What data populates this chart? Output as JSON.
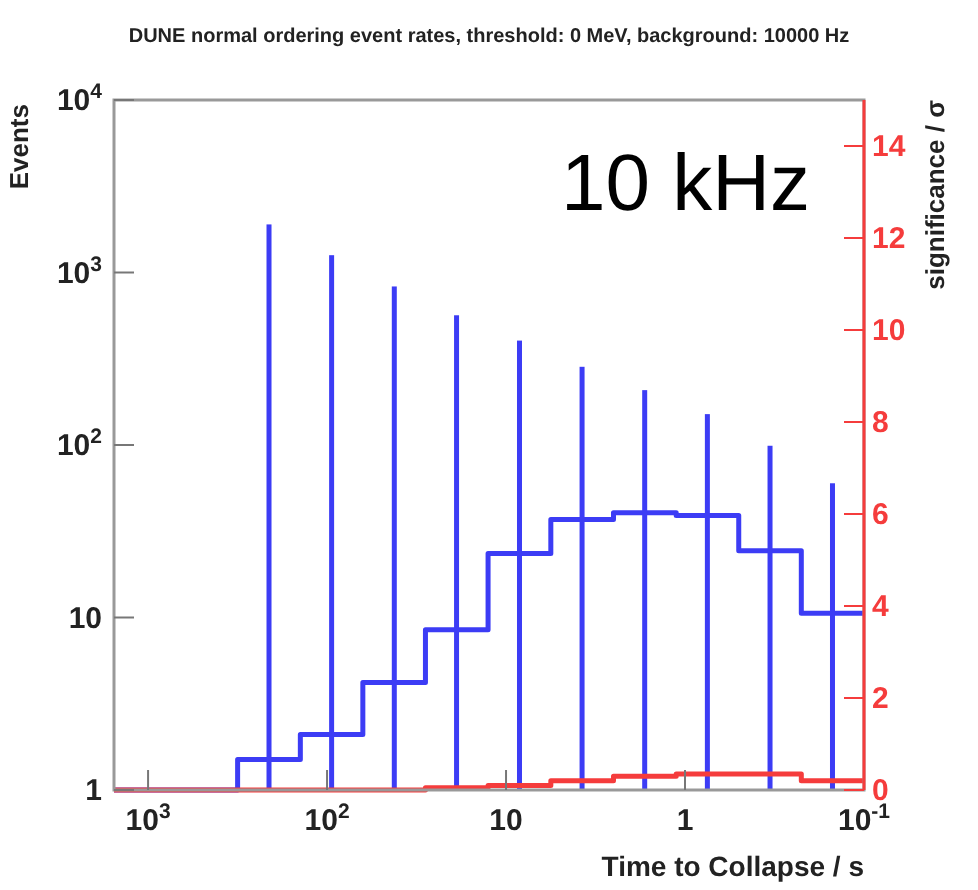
{
  "chart_data": {
    "type": "histogram",
    "title": "DUNE normal ordering event rates, threshold: 0 MeV, background: 10000 Hz",
    "xlabel": "Time to Collapse / s",
    "ylabel": "Events",
    "y2label": "significance / σ",
    "annotations": [
      "10 kHz"
    ],
    "log": "xy",
    "bins": [
      1550,
      316,
      141,
      63.1,
      28.2,
      12.6,
      5.62,
      2.51,
      1.12,
      0.501,
      0.224,
      0.1
    ],
    "series": [
      {
        "color": "#3c3cf5",
        "values": [
          1,
          1.5,
          2.1,
          4.2,
          8.5,
          23.5,
          37,
          40.5,
          39,
          24.4,
          10.6
        ]
      },
      {
        "type": "bar",
        "color": "#3c3cf5",
        "x": [
          211,
          94.3,
          42.1,
          18.9,
          8.41,
          3.76,
          1.68,
          0.75,
          0.335,
          0.15
        ],
        "values": [
          1900,
          1260,
          830,
          565,
          403,
          284,
          208,
          151,
          99,
          60
        ]
      },
      {
        "color": "#f53c3c",
        "axis": "y2",
        "values": [
          0,
          0,
          0,
          0,
          0.05,
          0.1,
          0.2,
          0.3,
          0.35,
          0.35,
          0.2
        ]
      }
    ],
    "xlim": [
      1550,
      0.1
    ],
    "xticks": [
      {
        "value": 1000,
        "label": "10$^{3}$"
      },
      {
        "value": 100,
        "label": "10$^{2}$"
      },
      10,
      1,
      {
        "value": 0.1,
        "label": "10$^{-1}$"
      }
    ],
    "ylim": [
      1,
      10000
    ],
    "yticks": [
      1,
      10,
      {
        "value": 100,
        "label": "10$^{2}$"
      },
      {
        "value": 1000,
        "label": "10$^{3}$"
      },
      {
        "value": 10000,
        "label": "10$^{4}$"
      }
    ],
    "y2lim": [
      0,
      15
    ],
    "y2ticks": [
      0,
      2,
      4,
      6,
      8,
      10,
      12,
      14
    ]
  }
}
